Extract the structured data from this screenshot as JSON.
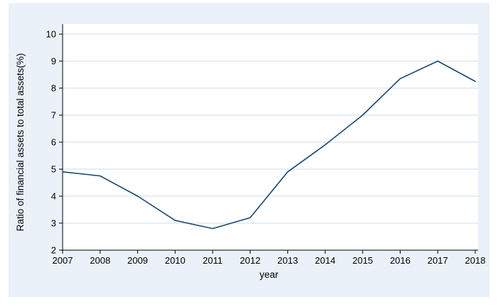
{
  "chart_data": {
    "type": "line",
    "x": [
      2007,
      2008,
      2009,
      2010,
      2011,
      2012,
      2013,
      2014,
      2015,
      2016,
      2017,
      2018
    ],
    "series": [
      {
        "name": "Ratio of financial assets to total assets(%)",
        "values": [
          4.9,
          4.75,
          4.0,
          3.1,
          2.8,
          3.2,
          4.9,
          5.9,
          7.0,
          8.35,
          9.0,
          8.25
        ]
      }
    ],
    "title": "",
    "xlabel": "year",
    "ylabel": "Ratio of financial assets to total assets(%)",
    "ylim": [
      2,
      10
    ],
    "yticks": [
      2,
      3,
      4,
      5,
      6,
      7,
      8,
      9,
      10
    ],
    "grid": "horizontal",
    "legend": "none",
    "colors": {
      "line": "#1a476f",
      "grid": "#cfdeed",
      "plot_bg": "#ffffff",
      "figure_bg": "#eaf1f8",
      "axis": "#000000",
      "tick_text": "#000000"
    }
  }
}
